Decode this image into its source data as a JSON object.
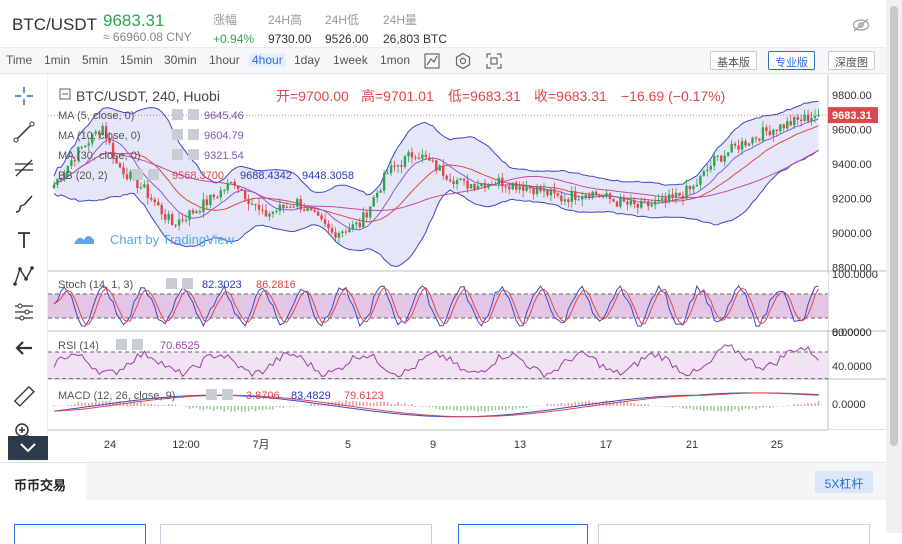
{
  "header": {
    "pair": "BTC/USDT",
    "price": "9683.31",
    "cny": "≈ 66960.08 CNY",
    "stats": [
      {
        "label": "涨幅",
        "value": "+0.94%",
        "up": true
      },
      {
        "label": "24H高",
        "value": "9730.00"
      },
      {
        "label": "24H低",
        "value": "9526.00"
      },
      {
        "label": "24H量",
        "value": "26,803 BTC"
      }
    ]
  },
  "toolbar": {
    "timeframes": [
      "Time",
      "1min",
      "5min",
      "15min",
      "30min",
      "1hour",
      "4hour",
      "1day",
      "1week",
      "1mon"
    ],
    "active_timeframe": "4hour",
    "views": [
      "基本版",
      "专业版",
      "深度图"
    ],
    "active_view": "专业版"
  },
  "legend": {
    "symbol": "BTC/USDT, 240, Huobi",
    "open_label": "开=9700.00",
    "high_label": "高=9701.01",
    "low_label": "低=9683.31",
    "close_label": "收=9683.31",
    "change": "−16.69 (−0.17%)",
    "ma5": "MA (5, close, 0)",
    "ma5_val": "9645.46",
    "ma10": "MA (10, close, 0)",
    "ma10_val": "9604.79",
    "ma30": "MA (30, close, 0)",
    "ma30_val": "9321.54",
    "bb": "BB (20, 2)",
    "bb_vals": [
      "9568.3700",
      "9688.4342",
      "9448.3058"
    ],
    "watermark": "Chart by TradingView"
  },
  "stoch": {
    "label": "Stoch (14, 1, 3)",
    "values": [
      "82.3023",
      "86.2816"
    ]
  },
  "rsi": {
    "label": "RSI (14)",
    "value": "70.6525"
  },
  "macd": {
    "label": "MACD (12, 26, close, 9)",
    "values": [
      "3.8706",
      "83.4829",
      "79.6123"
    ]
  },
  "price_axis": [
    "9800.00",
    "9600.00",
    "9400.00",
    "9200.00",
    "9000.00",
    "8800.00"
  ],
  "last_price_tag": "9683.31",
  "stoch_axis": [
    "100.0000",
    "0.0000"
  ],
  "rsi_axis": [
    "80.0000",
    "40.0000"
  ],
  "macd_axis": [
    "0.0000"
  ],
  "time_axis": [
    "24",
    "12:00",
    "7月",
    "5",
    "9",
    "13",
    "17",
    "21",
    "25"
  ],
  "bottom": {
    "tab": "币币交易",
    "lever": "5X杠杆"
  },
  "colors": {
    "up": "#2ea44f",
    "down": "#e0454a",
    "accent": "#2b6fd6",
    "bb_fill": "#cfd4f2",
    "osc_fill": "#dcb8e0"
  }
}
